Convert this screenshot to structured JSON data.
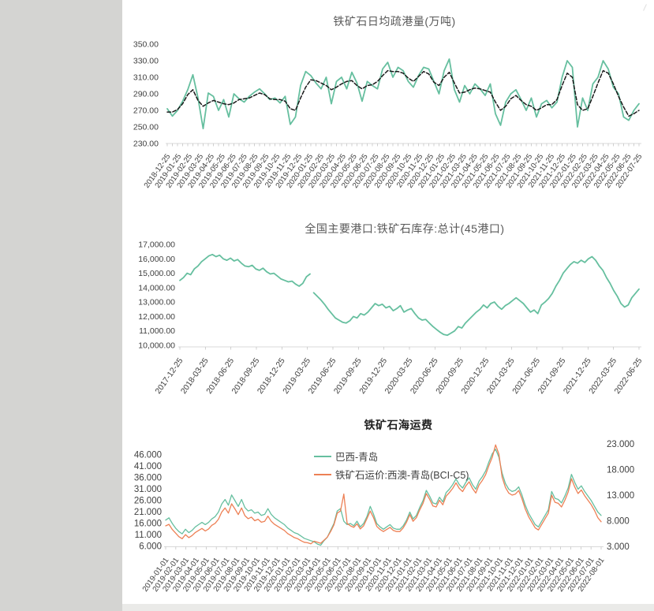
{
  "page": {
    "sidebar_color": "#d4d4d2",
    "background": "#ffffff",
    "accent_green": "#66BF9F",
    "accent_orange": "#ED8055",
    "dashed_black": "#1a1a1a"
  },
  "chart_data": [
    {
      "type": "line",
      "title": "铁矿石日均疏港量(万吨)",
      "xlabel": "",
      "ylabel": "",
      "ylim": [
        230,
        350
      ],
      "grid": false,
      "legend_position": "none",
      "ytick_values": [
        230,
        250,
        270,
        290,
        310,
        330,
        350
      ],
      "ytick_labels": [
        "230.00",
        "250.00",
        "270.00",
        "290.00",
        "310.00",
        "330.00",
        "350.00"
      ],
      "x_labels": [
        "2018-12-25",
        "2019-01-25",
        "2019-02-25",
        "2019-03-25",
        "2019-04-25",
        "2019-05-25",
        "2019-06-25",
        "2019-07-25",
        "2019-08-25",
        "2019-09-25",
        "2019-10-25",
        "2019-11-25",
        "2019-12-25",
        "2020-01-25",
        "2020-02-25",
        "2020-03-25",
        "2020-04-25",
        "2020-05-25",
        "2020-06-25",
        "2020-07-25",
        "2020-08-25",
        "2020-09-25",
        "2020-10-25",
        "2020-11-25",
        "2020-12-25",
        "2021-01-25",
        "2021-02-25",
        "2021-03-25",
        "2021-04-25",
        "2021-05-25",
        "2021-06-25",
        "2021-07-25",
        "2021-08-25",
        "2021-09-25",
        "2021-10-25",
        "2021-11-25",
        "2021-12-25",
        "2022-01-25",
        "2022-02-25",
        "2022-03-25",
        "2022-04-25",
        "2022-05-25",
        "2022-06-25",
        "2022-07-25"
      ],
      "series": [
        {
          "id": "series-1",
          "style": "solid",
          "color": "#66BF9F",
          "width": 1.8,
          "axis": "left",
          "values": [
            272,
            263,
            270,
            281,
            295,
            313,
            285,
            248,
            291,
            287,
            270,
            283,
            262,
            290,
            284,
            280,
            287,
            292,
            296,
            290,
            283,
            285,
            279,
            287,
            253,
            262,
            300,
            317,
            312,
            303,
            296,
            310,
            278,
            305,
            310,
            296,
            316,
            303,
            281,
            305,
            300,
            296,
            320,
            328,
            310,
            322,
            318,
            305,
            298,
            312,
            322,
            320,
            305,
            290,
            318,
            332,
            295,
            280,
            300,
            290,
            302,
            296,
            288,
            302,
            266,
            252,
            280,
            290,
            295,
            283,
            270,
            285,
            262,
            278,
            282,
            273,
            280,
            310,
            330,
            322,
            250,
            285,
            270,
            302,
            310,
            330,
            320,
            298,
            290,
            262,
            258,
            270,
            278
          ]
        },
        {
          "id": "series-2",
          "style": "dashed",
          "color": "#1a1a1a",
          "width": 1.5,
          "dash": "4.5 2.5",
          "axis": "left",
          "values": [
            268,
            268,
            271,
            278,
            289,
            295,
            282,
            275,
            279,
            282,
            280,
            278,
            277,
            279,
            283,
            284,
            285,
            288,
            291,
            289,
            284,
            283,
            283,
            281,
            272,
            270,
            285,
            298,
            307,
            306,
            303,
            300,
            295,
            298,
            302,
            305,
            306,
            300,
            296,
            300,
            301,
            305,
            312,
            318,
            317,
            317,
            315,
            309,
            305,
            311,
            317,
            314,
            304,
            300,
            310,
            316,
            303,
            291,
            292,
            295,
            297,
            296,
            294,
            292,
            280,
            270,
            275,
            284,
            288,
            282,
            277,
            275,
            270,
            273,
            277,
            277,
            283,
            300,
            315,
            310,
            277,
            270,
            272,
            287,
            303,
            318,
            315,
            302,
            287,
            274,
            263,
            266,
            270
          ]
        }
      ]
    },
    {
      "type": "line",
      "title": "全国主要港口:铁矿石库存:总计(45港口)",
      "xlabel": "",
      "ylabel": "",
      "ylim": [
        10000,
        17000
      ],
      "grid": false,
      "legend_position": "none",
      "ytick_values": [
        10000,
        11000,
        12000,
        13000,
        14000,
        15000,
        16000,
        17000
      ],
      "ytick_labels": [
        "10,000.00",
        "11,000.00",
        "12,000.00",
        "13,000.00",
        "14,000.00",
        "15,000.00",
        "16,000.00",
        "17,000.00"
      ],
      "x_labels": [
        "2017-12-25",
        "2018-03-25",
        "2018-06-25",
        "2018-09-25",
        "2018-12-25",
        "2019-03-25",
        "2019-06-25",
        "2019-09-25",
        "2019-12-25",
        "2020-03-25",
        "2020-06-25",
        "2020-09-25",
        "2020-12-25",
        "2021-03-25",
        "2021-06-25",
        "2021-09-25",
        "2021-12-25",
        "2022-03-25",
        "2022-06-25"
      ],
      "series": [
        {
          "id": "series-1",
          "style": "solid",
          "color": "#66BF9F",
          "width": 1.8,
          "axis": "left",
          "gaps": [
            36
          ],
          "values": [
            14500,
            14700,
            15000,
            14900,
            15300,
            15500,
            15800,
            16000,
            16200,
            16300,
            16150,
            16250,
            16000,
            15900,
            16050,
            15850,
            15950,
            15700,
            15500,
            15450,
            15550,
            15300,
            15200,
            15350,
            15100,
            14950,
            15000,
            14800,
            14600,
            14500,
            14400,
            14450,
            14250,
            14100,
            14300,
            14750,
            14950,
            13650,
            13400,
            13150,
            12850,
            12500,
            12200,
            11900,
            11750,
            11600,
            11550,
            11700,
            12000,
            11900,
            12200,
            12100,
            12300,
            12600,
            12900,
            12750,
            12850,
            12600,
            12700,
            12400,
            12550,
            12750,
            12300,
            12450,
            12550,
            12200,
            11900,
            11750,
            11800,
            11550,
            11300,
            11100,
            10900,
            10750,
            10700,
            10850,
            11000,
            11300,
            11200,
            11550,
            11800,
            12050,
            12300,
            12500,
            12800,
            12600,
            12900,
            13000,
            12700,
            12500,
            12750,
            12900,
            13100,
            13300,
            13100,
            12900,
            12600,
            12300,
            12450,
            12200,
            12800,
            13000,
            13250,
            13600,
            14100,
            14500,
            15000,
            15300,
            15600,
            15800,
            15700,
            15900,
            15750,
            16000,
            16150,
            15900,
            15500,
            15200,
            14700,
            14300,
            13800,
            13400,
            12900,
            12650,
            12800,
            13300,
            13600,
            13900
          ]
        }
      ]
    },
    {
      "type": "line",
      "title": "铁矿石海运费",
      "xlabel": "",
      "ylabel": "",
      "ylim": [
        6,
        46
      ],
      "y2lim": [
        3,
        23
      ],
      "grid": false,
      "legend_position": "top-center",
      "ytick_values": [
        6,
        11,
        16,
        21,
        26,
        31,
        36,
        41,
        46
      ],
      "ytick_labels": [
        "6.000",
        "11.000",
        "16.000",
        "21.000",
        "26.000",
        "31.000",
        "36.000",
        "41.000",
        "46.000"
      ],
      "y2tick_values": [
        3,
        8,
        13,
        18,
        23
      ],
      "y2tick_labels": [
        "3.000",
        "8.000",
        "13.000",
        "18.000",
        "23.000"
      ],
      "x_labels": [
        "2019-01-01",
        "2019-02-01",
        "2019-03-01",
        "2019-04-01",
        "2019-05-01",
        "2019-06-01",
        "2019-07-01",
        "2019-08-01",
        "2019-09-01",
        "2019-10-01",
        "2019-11-01",
        "2019-12-01",
        "2020-01-01",
        "2020-02-01",
        "2020-03-01",
        "2020-04-01",
        "2020-05-01",
        "2020-06-01",
        "2020-07-01",
        "2020-08-01",
        "2020-09-01",
        "2020-10-01",
        "2020-11-01",
        "2020-12-01",
        "2021-01-01",
        "2021-02-01",
        "2021-03-01",
        "2021-04-01",
        "2021-05-01",
        "2021-06-01",
        "2021-07-01",
        "2021-08-01",
        "2021-09-01",
        "2021-10-01",
        "2021-11-01",
        "2021-12-01",
        "2022-01-01",
        "2022-02-01",
        "2022-03-01",
        "2022-04-01",
        "2022-05-01",
        "2022-06-01",
        "2022-07-01",
        "2022-08-01"
      ],
      "series": [
        {
          "name": "巴西-青岛",
          "style": "solid",
          "color": "#66BF9F",
          "width": 1.3,
          "axis": "left",
          "values": [
            17.5,
            18.5,
            16,
            14,
            12.5,
            11.5,
            13.5,
            12,
            13,
            14.5,
            15.5,
            16.5,
            15.5,
            16.5,
            18,
            19,
            21,
            24.5,
            26.5,
            24,
            28.5,
            26,
            23.5,
            26.5,
            23,
            21.5,
            22,
            20.5,
            21,
            19.5,
            20,
            22.5,
            20,
            18.5,
            17.5,
            16.5,
            15.5,
            14,
            13,
            12,
            11.5,
            10.5,
            9.5,
            9,
            8.5,
            8,
            7,
            6.5,
            8.5,
            10,
            13,
            16,
            21.5,
            22.5,
            17,
            15.5,
            16,
            15,
            17,
            14.5,
            16,
            19,
            23.5,
            20,
            16,
            14.5,
            13.5,
            14.5,
            15.5,
            14,
            13.5,
            13.5,
            15,
            17.5,
            21,
            18,
            19.5,
            23,
            26,
            30.5,
            28,
            25,
            24.5,
            27.5,
            25.5,
            29.5,
            31,
            33,
            35.5,
            33,
            31.5,
            34,
            36,
            33,
            31,
            34.5,
            36.5,
            39,
            43,
            46.5,
            48.5,
            45,
            38,
            33.5,
            31,
            30,
            30.5,
            32,
            28.5,
            24,
            20.5,
            18,
            15.5,
            14.5,
            17,
            19.5,
            22,
            30,
            27,
            26.5,
            25,
            28,
            31.5,
            37.5,
            34,
            31,
            32.5,
            30,
            28,
            26,
            23.5,
            21,
            19.5
          ]
        },
        {
          "name": "铁矿石运价:西澳-青岛(BCI-C5)",
          "style": "solid",
          "color": "#ED8055",
          "width": 1.3,
          "axis": "right",
          "values": [
            7,
            7.3,
            6.3,
            5.6,
            4.9,
            4.5,
            5.3,
            4.7,
            5.1,
            5.7,
            6.1,
            6.5,
            6,
            6.4,
            7.1,
            7.5,
            8.3,
            9.7,
            10.5,
            9.5,
            11.3,
            10.3,
            9.2,
            10.5,
            9,
            8.4,
            8.7,
            8,
            8.3,
            7.7,
            7.9,
            8.9,
            7.9,
            7.3,
            6.9,
            6.5,
            6.1,
            5.5,
            5.1,
            4.7,
            4.5,
            4.1,
            3.8,
            3.7,
            3.5,
            4,
            3.8,
            3.6,
            4.2,
            4.8,
            5.9,
            7.2,
            9.5,
            9.9,
            13.2,
            7.5,
            7,
            6.7,
            7.4,
            6.4,
            7,
            8.4,
            9.9,
            8.6,
            6.9,
            6.3,
            5.9,
            6.3,
            6.7,
            6.1,
            5.9,
            5.9,
            6.6,
            7.7,
            9.2,
            7.9,
            8.6,
            10.1,
            11.4,
            13.3,
            12.2,
            10.9,
            10.7,
            12,
            11.1,
            12.8,
            13.5,
            14.3,
            15.4,
            14.3,
            13.7,
            14.8,
            15.6,
            14.3,
            13.4,
            15,
            15.9,
            17,
            18.8,
            20.4,
            22.8,
            21,
            16.5,
            14.5,
            13.4,
            13,
            13.2,
            13.9,
            12.3,
            10.3,
            8.8,
            7.7,
            6.6,
            6.2,
            7.3,
            8.4,
            9.5,
            13,
            11.6,
            11.4,
            10.7,
            12,
            13.6,
            16.2,
            14.6,
            13.3,
            14,
            12.9,
            12,
            11.1,
            10,
            8.6,
            7.8
          ]
        }
      ]
    }
  ]
}
